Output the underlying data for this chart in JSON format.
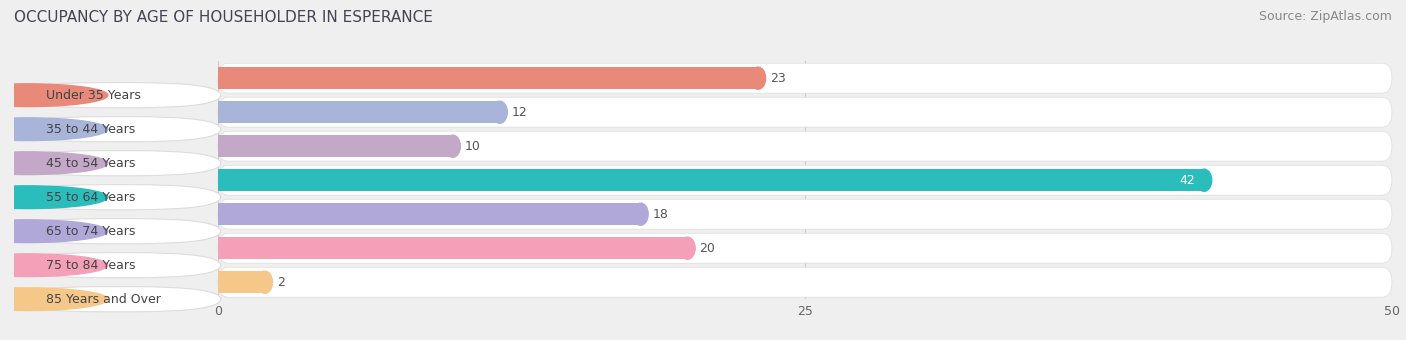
{
  "title": "OCCUPANCY BY AGE OF HOUSEHOLDER IN ESPERANCE",
  "source": "Source: ZipAtlas.com",
  "categories": [
    "Under 35 Years",
    "35 to 44 Years",
    "45 to 54 Years",
    "55 to 64 Years",
    "65 to 74 Years",
    "75 to 84 Years",
    "85 Years and Over"
  ],
  "values": [
    23,
    12,
    10,
    42,
    18,
    20,
    2
  ],
  "bar_colors": [
    "#E8897A",
    "#A8B4D8",
    "#C4A8C8",
    "#2BBCBC",
    "#B0A8D8",
    "#F4A0B8",
    "#F5C88A"
  ],
  "xlim_display": 50,
  "xticks": [
    0,
    25,
    50
  ],
  "bar_height": 0.65,
  "background_color": "#efefef",
  "row_bg_color": "#ffffff",
  "label_bg_colors": [
    "#E8897A",
    "#A8B4D8",
    "#C4A8C8",
    "#2BBCBC",
    "#B0A8D8",
    "#F4A0B8",
    "#F5C88A"
  ],
  "title_fontsize": 11,
  "source_fontsize": 9,
  "label_fontsize": 9,
  "value_fontsize": 9,
  "title_color": "#444455",
  "source_color": "#888888",
  "label_text_color": "#444444",
  "value_color_default": "#555555",
  "value_color_teal": "#ffffff"
}
